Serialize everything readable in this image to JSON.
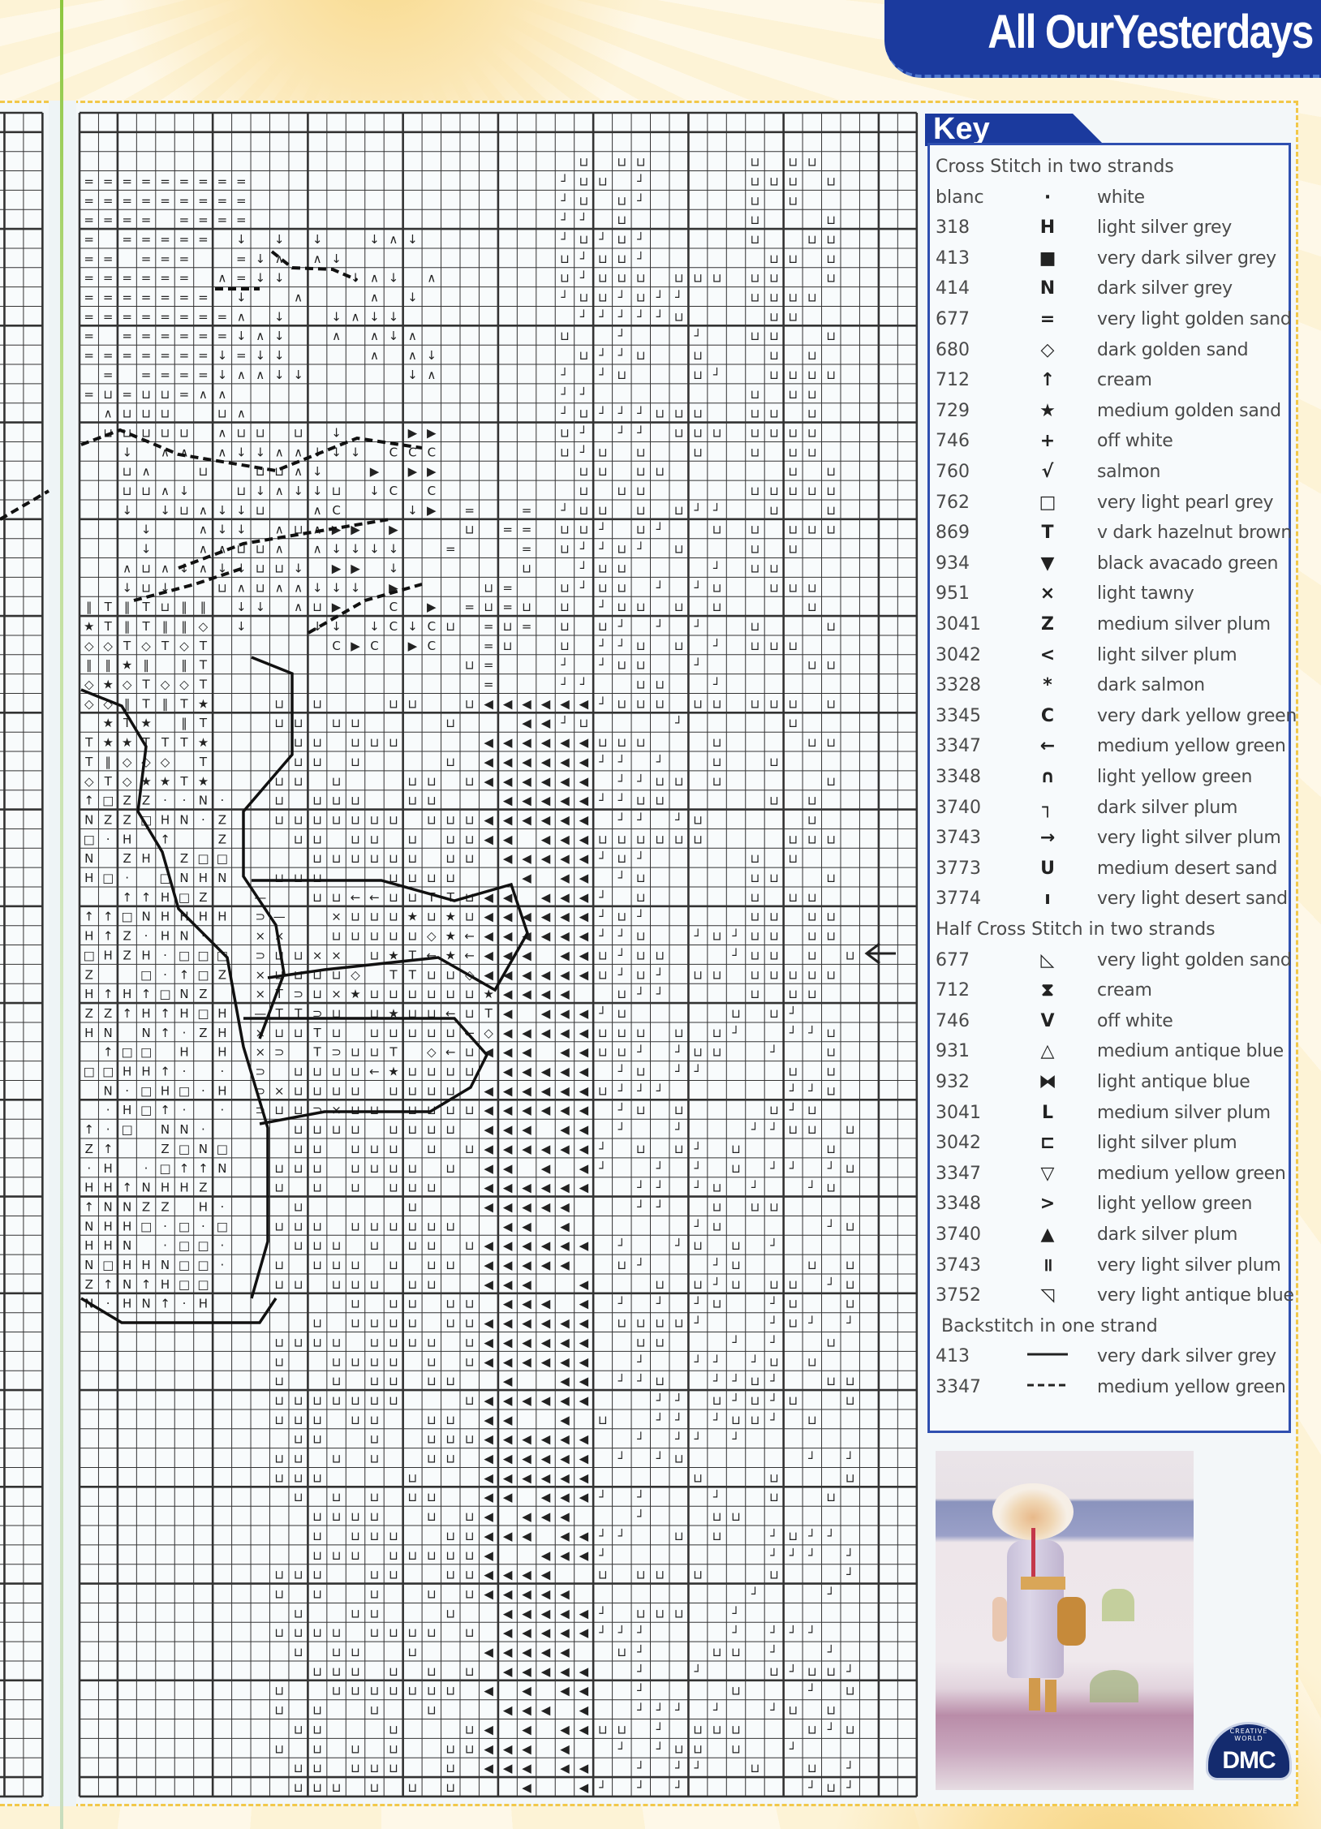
{
  "header": {
    "title": "All OurYesterdays"
  },
  "key": {
    "title": "Key",
    "sections": [
      {
        "heading": "Cross Stitch in two strands",
        "rows": [
          {
            "num": "blanc",
            "symbol": "·",
            "name": "white"
          },
          {
            "num": "318",
            "symbol": "H",
            "name": "light silver grey"
          },
          {
            "num": "413",
            "symbol": "■",
            "name": "very dark silver grey"
          },
          {
            "num": "414",
            "symbol": "N",
            "name": "dark silver grey"
          },
          {
            "num": "677",
            "symbol": "=",
            "name": "very light golden sand"
          },
          {
            "num": "680",
            "symbol": "◇",
            "name": "dark golden sand"
          },
          {
            "num": "712",
            "symbol": "↑",
            "name": "cream"
          },
          {
            "num": "729",
            "symbol": "★",
            "name": "medium golden sand"
          },
          {
            "num": "746",
            "symbol": "+",
            "name": "off white"
          },
          {
            "num": "760",
            "symbol": "√",
            "name": "salmon"
          },
          {
            "num": "762",
            "symbol": "□",
            "name": "very light pearl grey"
          },
          {
            "num": "869",
            "symbol": "T",
            "name": "v dark hazelnut brown"
          },
          {
            "num": "934",
            "symbol": "▼",
            "name": "black avacado green"
          },
          {
            "num": "951",
            "symbol": "×",
            "name": "light tawny"
          },
          {
            "num": "3041",
            "symbol": "Z",
            "name": "medium silver plum"
          },
          {
            "num": "3042",
            "symbol": "<",
            "name": "light silver plum"
          },
          {
            "num": "3328",
            "symbol": "*",
            "name": "dark salmon"
          },
          {
            "num": "3345",
            "symbol": "C",
            "name": "very dark yellow green"
          },
          {
            "num": "3347",
            "symbol": "←",
            "name": "medium yellow green"
          },
          {
            "num": "3348",
            "symbol": "∩",
            "name": "light yellow green"
          },
          {
            "num": "3740",
            "symbol": "┐",
            "name": "dark silver plum"
          },
          {
            "num": "3743",
            "symbol": "→",
            "name": "very light silver plum"
          },
          {
            "num": "3773",
            "symbol": "U",
            "name": "medium desert sand"
          },
          {
            "num": "3774",
            "symbol": "ı",
            "name": "very light desert sand"
          }
        ]
      },
      {
        "heading": "Half Cross Stitch in two strands",
        "rows": [
          {
            "num": "677",
            "symbol": "◺",
            "name": "very light golden sand"
          },
          {
            "num": "712",
            "symbol": "⧗",
            "name": "cream"
          },
          {
            "num": "746",
            "symbol": "V",
            "name": "off white"
          },
          {
            "num": "931",
            "symbol": "△",
            "name": "medium antique blue"
          },
          {
            "num": "932",
            "symbol": "⧓",
            "name": "light antique blue"
          },
          {
            "num": "3041",
            "symbol": "L",
            "name": "medium silver plum"
          },
          {
            "num": "3042",
            "symbol": "⊏",
            "name": "light silver plum"
          },
          {
            "num": "3347",
            "symbol": "▽",
            "name": "medium yellow green"
          },
          {
            "num": "3348",
            "symbol": ">",
            "name": "light yellow green"
          },
          {
            "num": "3740",
            "symbol": "▲",
            "name": "dark silver plum"
          },
          {
            "num": "3743",
            "symbol": "॥",
            "name": "very light silver plum"
          },
          {
            "num": "3752",
            "symbol": "◹",
            "name": "very light antique blue"
          }
        ]
      },
      {
        "heading": "Backstitch in one strand",
        "rows": [
          {
            "num": "413",
            "symbol": "solid-line",
            "name": "very dark silver grey"
          },
          {
            "num": "3347",
            "symbol": "dashed-line",
            "name": "medium yellow green"
          }
        ]
      }
    ]
  },
  "logo": {
    "ring_text": "CREATIVE WORLD",
    "brand": "DMC"
  },
  "colors": {
    "banner": "#1b3a9e",
    "key_border": "#2f4fb0",
    "page_border": "#f2c84a",
    "spine": "#8cc63e"
  }
}
